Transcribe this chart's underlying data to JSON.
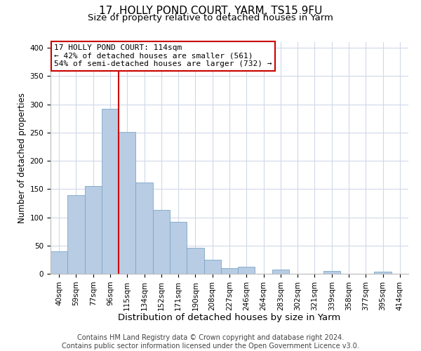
{
  "title1": "17, HOLLY POND COURT, YARM, TS15 9FU",
  "title2": "Size of property relative to detached houses in Yarm",
  "xlabel": "Distribution of detached houses by size in Yarm",
  "ylabel": "Number of detached properties",
  "bar_labels": [
    "40sqm",
    "59sqm",
    "77sqm",
    "96sqm",
    "115sqm",
    "134sqm",
    "152sqm",
    "171sqm",
    "190sqm",
    "208sqm",
    "227sqm",
    "246sqm",
    "264sqm",
    "283sqm",
    "302sqm",
    "321sqm",
    "339sqm",
    "358sqm",
    "377sqm",
    "395sqm",
    "414sqm"
  ],
  "bar_values": [
    40,
    139,
    155,
    292,
    251,
    161,
    113,
    92,
    46,
    25,
    10,
    13,
    0,
    8,
    0,
    0,
    5,
    0,
    0,
    4,
    0
  ],
  "bar_color": "#b8cce4",
  "bar_edge_color": "#7ba7c7",
  "vline_x_index": 4,
  "vline_color": "#cc0000",
  "annotation_title": "17 HOLLY POND COURT: 114sqm",
  "annotation_line1": "← 42% of detached houses are smaller (561)",
  "annotation_line2": "54% of semi-detached houses are larger (732) →",
  "annotation_box_color": "#ffffff",
  "annotation_box_edge_color": "#cc0000",
  "ylim": [
    0,
    410
  ],
  "yticks": [
    0,
    50,
    100,
    150,
    200,
    250,
    300,
    350,
    400
  ],
  "footer1": "Contains HM Land Registry data © Crown copyright and database right 2024.",
  "footer2": "Contains public sector information licensed under the Open Government Licence v3.0.",
  "bg_color": "#ffffff",
  "grid_color": "#d0d8e8",
  "title1_fontsize": 11,
  "title2_fontsize": 9.5,
  "xlabel_fontsize": 9.5,
  "ylabel_fontsize": 8.5,
  "tick_fontsize": 7.5,
  "annotation_fontsize": 8,
  "footer_fontsize": 7
}
